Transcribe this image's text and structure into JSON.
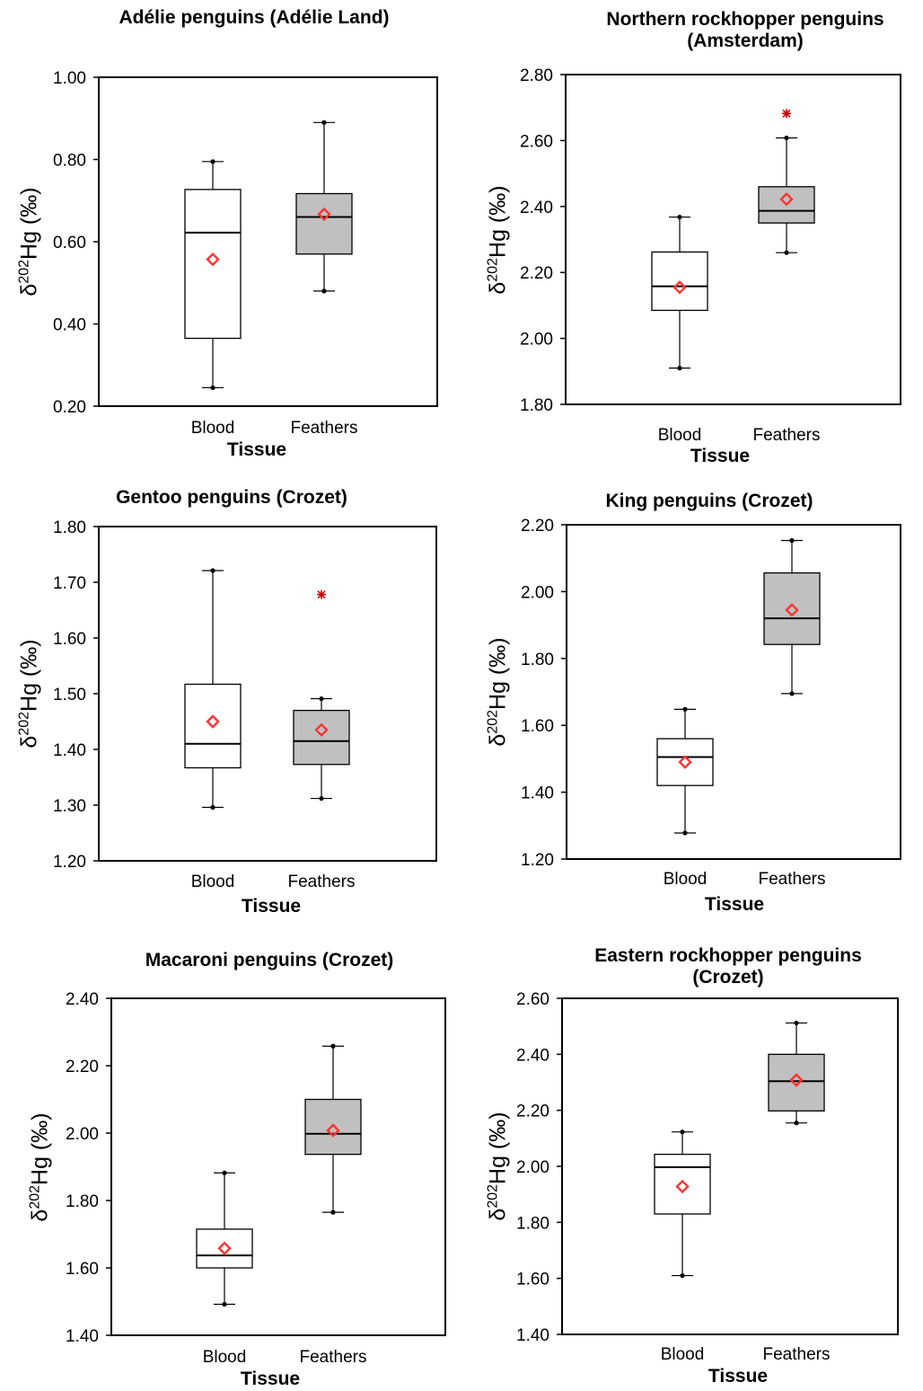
{
  "chart_data": [
    {
      "type": "box",
      "title": [
        "Adélie penguins (Adélie Land)"
      ],
      "ylabel": {
        "prefix": "δ",
        "sup": "202",
        "main": "Hg (‰)"
      },
      "xlabel": "Tissue",
      "categories": [
        "Blood",
        "Feathers"
      ],
      "ylim": [
        0.2,
        1.0
      ],
      "yticks": [
        "0.20",
        "0.40",
        "0.60",
        "0.80",
        "1.00"
      ],
      "boxes": [
        {
          "category": "Blood",
          "min": 0.245,
          "q1": 0.365,
          "median": 0.622,
          "q3": 0.727,
          "max": 0.795,
          "mean": 0.557,
          "outliers": [],
          "fill": "#ffffff"
        },
        {
          "category": "Feathers",
          "min": 0.48,
          "q1": 0.57,
          "median": 0.66,
          "q3": 0.717,
          "max": 0.89,
          "mean": 0.667,
          "outliers": [],
          "fill": "#c0c0c0"
        }
      ]
    },
    {
      "type": "box",
      "title": [
        "Northern rockhopper penguins",
        "(Amsterdam)"
      ],
      "ylabel": {
        "prefix": "δ",
        "sup": "202",
        "main": "Hg (‰)"
      },
      "xlabel": "Tissue",
      "categories": [
        "Blood",
        "Feathers"
      ],
      "ylim": [
        1.8,
        2.8
      ],
      "yticks": [
        "1.80",
        "2.00",
        "2.20",
        "2.40",
        "2.60",
        "2.80"
      ],
      "boxes": [
        {
          "category": "Blood",
          "min": 1.91,
          "q1": 2.085,
          "median": 2.158,
          "q3": 2.262,
          "max": 2.368,
          "mean": 2.155,
          "outliers": [],
          "fill": "#ffffff"
        },
        {
          "category": "Feathers",
          "min": 2.26,
          "q1": 2.35,
          "median": 2.387,
          "q3": 2.46,
          "max": 2.608,
          "mean": 2.422,
          "outliers": [
            2.682
          ],
          "fill": "#c0c0c0"
        }
      ]
    },
    {
      "type": "box",
      "title": [
        "Gentoo penguins (Crozet)"
      ],
      "ylabel": {
        "prefix": "δ",
        "sup": "202",
        "main": "Hg (‰)"
      },
      "xlabel": "Tissue",
      "categories": [
        "Blood",
        "Feathers"
      ],
      "ylim": [
        1.2,
        1.8
      ],
      "yticks": [
        "1.20",
        "1.30",
        "1.40",
        "1.50",
        "1.60",
        "1.70",
        "1.80"
      ],
      "boxes": [
        {
          "category": "Blood",
          "min": 1.296,
          "q1": 1.367,
          "median": 1.41,
          "q3": 1.517,
          "max": 1.721,
          "mean": 1.45,
          "outliers": [],
          "fill": "#ffffff"
        },
        {
          "category": "Feathers",
          "min": 1.312,
          "q1": 1.373,
          "median": 1.415,
          "q3": 1.47,
          "max": 1.491,
          "mean": 1.435,
          "outliers": [
            1.678
          ],
          "fill": "#c0c0c0"
        }
      ]
    },
    {
      "type": "box",
      "title": [
        "King penguins (Crozet)"
      ],
      "ylabel": {
        "prefix": "δ",
        "sup": "202",
        "main": "Hg (‰)"
      },
      "xlabel": "Tissue",
      "categories": [
        "Blood",
        "Feathers"
      ],
      "ylim": [
        1.2,
        2.2
      ],
      "yticks": [
        "1.20",
        "1.40",
        "1.60",
        "1.80",
        "2.00",
        "2.20"
      ],
      "boxes": [
        {
          "category": "Blood",
          "min": 1.278,
          "q1": 1.42,
          "median": 1.505,
          "q3": 1.56,
          "max": 1.648,
          "mean": 1.49,
          "outliers": [],
          "fill": "#ffffff"
        },
        {
          "category": "Feathers",
          "min": 1.695,
          "q1": 1.842,
          "median": 1.92,
          "q3": 2.056,
          "max": 2.153,
          "mean": 1.945,
          "outliers": [],
          "fill": "#c0c0c0"
        }
      ]
    },
    {
      "type": "box",
      "title": [
        "Macaroni penguins (Crozet)"
      ],
      "ylabel": {
        "prefix": "δ",
        "sup": "202",
        "main": "Hg (‰)"
      },
      "xlabel": "Tissue",
      "categories": [
        "Blood",
        "Feathers"
      ],
      "ylim": [
        1.4,
        2.4
      ],
      "yticks": [
        "1.40",
        "1.60",
        "1.80",
        "2.00",
        "2.20",
        "2.40"
      ],
      "boxes": [
        {
          "category": "Blood",
          "min": 1.492,
          "q1": 1.6,
          "median": 1.637,
          "q3": 1.715,
          "max": 1.882,
          "mean": 1.658,
          "outliers": [],
          "fill": "#ffffff"
        },
        {
          "category": "Feathers",
          "min": 1.765,
          "q1": 1.937,
          "median": 1.998,
          "q3": 2.1,
          "max": 2.258,
          "mean": 2.008,
          "outliers": [],
          "fill": "#c0c0c0"
        }
      ]
    },
    {
      "type": "box",
      "title": [
        "Eastern rockhopper penguins",
        "(Crozet)"
      ],
      "ylabel": {
        "prefix": "δ",
        "sup": "202",
        "main": "Hg (‰)"
      },
      "xlabel": "Tissue",
      "categories": [
        "Blood",
        "Feathers"
      ],
      "ylim": [
        1.4,
        2.6
      ],
      "yticks": [
        "1.40",
        "1.60",
        "1.80",
        "2.00",
        "2.20",
        "2.40",
        "2.60"
      ],
      "boxes": [
        {
          "category": "Blood",
          "min": 1.61,
          "q1": 1.83,
          "median": 1.997,
          "q3": 2.043,
          "max": 2.123,
          "mean": 1.928,
          "outliers": [],
          "fill": "#ffffff"
        },
        {
          "category": "Feathers",
          "min": 2.155,
          "q1": 2.198,
          "median": 2.304,
          "q3": 2.4,
          "max": 2.512,
          "mean": 2.308,
          "outliers": [],
          "fill": "#c0c0c0"
        }
      ]
    }
  ],
  "colors": {
    "mean_marker": "#ff3333",
    "outlier_marker": "#cc0000",
    "box_fill_feathers": "#c0c0c0",
    "box_fill_blood": "#ffffff"
  },
  "icons": {
    "mean_marker": "diamond-icon",
    "outlier_marker": "asterisk-icon"
  }
}
